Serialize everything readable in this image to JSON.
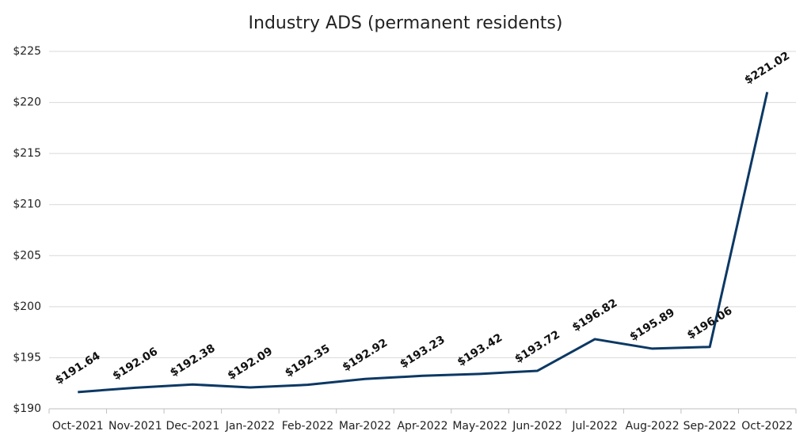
{
  "chart_data": {
    "type": "line",
    "title": "Industry ADS (permanent residents)",
    "categories": [
      "Oct-2021",
      "Nov-2021",
      "Dec-2021",
      "Jan-2022",
      "Feb-2022",
      "Mar-2022",
      "Apr-2022",
      "May-2022",
      "Jun-2022",
      "Jul-2022",
      "Aug-2022",
      "Sep-2022",
      "Oct-2022"
    ],
    "series": [
      {
        "color": "#0c3864",
        "values": [
          191.64,
          192.06,
          192.38,
          192.09,
          192.35,
          192.92,
          193.23,
          193.42,
          193.72,
          196.82,
          195.89,
          196.06,
          221.02
        ],
        "value_labels": [
          "$191.64",
          "$192.06",
          "$192.38",
          "$192.09",
          "$192.35",
          "$192.92",
          "$193.23",
          "$193.42",
          "$193.72",
          "$196.82",
          "$195.89",
          "$196.06",
          "$221.02"
        ]
      }
    ],
    "ylim": [
      190,
      225
    ],
    "yticks": [
      {
        "value": 190,
        "label": "$190"
      },
      {
        "value": 195,
        "label": "$195"
      },
      {
        "value": 200,
        "label": "$200"
      },
      {
        "value": 205,
        "label": "$205"
      },
      {
        "value": 210,
        "label": "$210"
      },
      {
        "value": 215,
        "label": "$215"
      },
      {
        "value": 220,
        "label": "$220"
      },
      {
        "value": 225,
        "label": "$225"
      }
    ],
    "grid": true
  }
}
